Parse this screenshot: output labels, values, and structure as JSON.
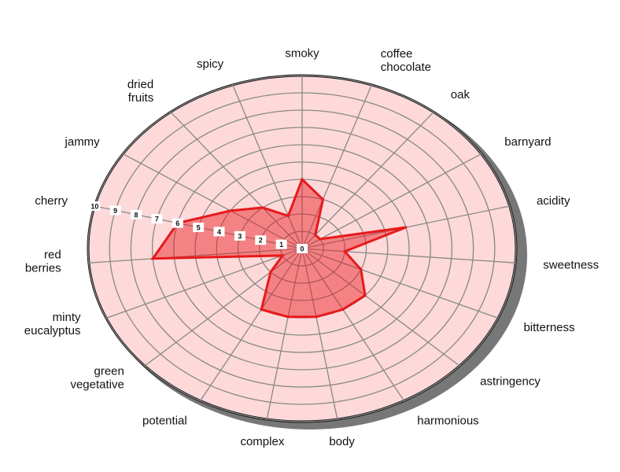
{
  "chart_data": {
    "type": "radar",
    "categories": [
      "smoky",
      "coffee chocolate",
      "oak",
      "barnyard",
      "acidity",
      "sweetness",
      "bitterness",
      "astringency",
      "harmonious",
      "body",
      "complex",
      "potential",
      "green vegetative",
      "minty eucalyptus",
      "red berries",
      "cherry",
      "jammy",
      "dried fruits",
      "spicy"
    ],
    "values": [
      4,
      3,
      1,
      1,
      5,
      2,
      3,
      4,
      4,
      4,
      4,
      4,
      2,
      1,
      7,
      6,
      4,
      3,
      2
    ],
    "color": "#e8191c",
    "rlim": [
      0,
      10
    ],
    "rticks": [
      0,
      1,
      2,
      3,
      4,
      5,
      6,
      7,
      8,
      9,
      10
    ],
    "grid": true
  }
}
